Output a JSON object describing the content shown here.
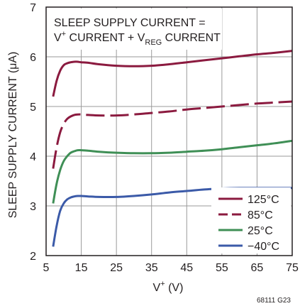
{
  "chart_data": {
    "type": "line",
    "xlabel": "V",
    "xlabel_sup": "+",
    "xlabel_unit": " (V)",
    "ylabel": "SLEEP SUPPLY CURRENT (μA)",
    "xlim": [
      5,
      75
    ],
    "ylim": [
      2,
      7
    ],
    "xticks": [
      "5",
      "15",
      "25",
      "35",
      "45",
      "55",
      "65",
      "75"
    ],
    "yticks": [
      "2",
      "3",
      "4",
      "5",
      "6",
      "7"
    ],
    "grid": true,
    "legend_position": "bottom-right",
    "annotation": {
      "line1": "SLEEP SUPPLY CURRENT =",
      "line2_a": "V",
      "line2_sup": "+",
      "line2_b": " CURRENT + V",
      "line2_sub": "REG",
      "line2_c": " CURRENT"
    },
    "figure_id": "68111 G23",
    "series": [
      {
        "name": "125°C",
        "color": "#8b1a3f",
        "dashed": false,
        "x": [
          7,
          8,
          9,
          10,
          11,
          12,
          13,
          14,
          15,
          17,
          20,
          25,
          30,
          35,
          40,
          45,
          50,
          55,
          60,
          65,
          70,
          75
        ],
        "y": [
          5.2,
          5.52,
          5.72,
          5.83,
          5.87,
          5.89,
          5.9,
          5.9,
          5.89,
          5.88,
          5.85,
          5.82,
          5.81,
          5.82,
          5.85,
          5.89,
          5.93,
          5.97,
          6.01,
          6.05,
          6.08,
          6.12
        ]
      },
      {
        "name": "85°C",
        "color": "#8b1a3f",
        "dashed": true,
        "x": [
          7,
          8,
          9,
          10,
          11,
          12,
          13,
          14,
          15,
          17,
          20,
          25,
          30,
          35,
          40,
          45,
          50,
          55,
          60,
          65,
          70,
          75
        ],
        "y": [
          3.75,
          4.18,
          4.48,
          4.65,
          4.75,
          4.8,
          4.83,
          4.84,
          4.84,
          4.83,
          4.82,
          4.82,
          4.84,
          4.87,
          4.9,
          4.94,
          4.97,
          5.0,
          5.03,
          5.06,
          5.08,
          5.1
        ]
      },
      {
        "name": "25°C",
        "color": "#3f8f56",
        "dashed": false,
        "x": [
          7,
          8,
          9,
          10,
          11,
          12,
          13,
          14,
          15,
          17,
          20,
          25,
          30,
          35,
          40,
          45,
          50,
          55,
          60,
          65,
          70,
          75
        ],
        "y": [
          3.05,
          3.45,
          3.72,
          3.9,
          4.0,
          4.07,
          4.1,
          4.12,
          4.12,
          4.11,
          4.09,
          4.07,
          4.06,
          4.06,
          4.07,
          4.09,
          4.11,
          4.14,
          4.18,
          4.22,
          4.26,
          4.31
        ]
      },
      {
        "name": "−40°C",
        "color": "#3b5aa8",
        "dashed": false,
        "x": [
          7,
          8,
          9,
          10,
          11,
          12,
          13,
          14,
          15,
          17,
          20,
          25,
          30,
          35,
          40,
          45,
          50,
          55,
          60,
          65,
          70,
          75
        ],
        "y": [
          2.18,
          2.6,
          2.9,
          3.05,
          3.13,
          3.17,
          3.19,
          3.2,
          3.2,
          3.19,
          3.18,
          3.18,
          3.2,
          3.23,
          3.27,
          3.3,
          3.33,
          3.35,
          3.36,
          3.36,
          3.36,
          3.36
        ]
      }
    ]
  }
}
